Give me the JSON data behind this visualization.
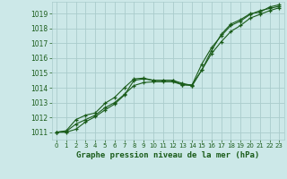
{
  "title": "Graphe pression niveau de la mer (hPa)",
  "bg_color": "#cce8e8",
  "grid_color": "#aacccc",
  "line_color": "#1a5c1a",
  "xlim_min": -0.5,
  "xlim_max": 23.5,
  "ylim_min": 1010.5,
  "ylim_max": 1019.8,
  "yticks": [
    1011,
    1012,
    1013,
    1014,
    1015,
    1016,
    1017,
    1018,
    1019
  ],
  "xticks": [
    0,
    1,
    2,
    3,
    4,
    5,
    6,
    7,
    8,
    9,
    10,
    11,
    12,
    13,
    14,
    15,
    16,
    17,
    18,
    19,
    20,
    21,
    22,
    23
  ],
  "line1_x": [
    0,
    1,
    2,
    3,
    4,
    5,
    6,
    7,
    8,
    9,
    10,
    11,
    12,
    13,
    14,
    15,
    16,
    17,
    18,
    19,
    20,
    21,
    22,
    23
  ],
  "line1_y": [
    1011.0,
    1011.0,
    1011.2,
    1011.7,
    1012.05,
    1012.5,
    1012.9,
    1013.5,
    1014.5,
    1014.6,
    1014.5,
    1014.5,
    1014.5,
    1014.2,
    1014.2,
    1015.6,
    1016.7,
    1017.5,
    1018.2,
    1018.5,
    1018.95,
    1019.2,
    1019.35,
    1019.5
  ],
  "line2_x": [
    0,
    1,
    2,
    3,
    4,
    5,
    6,
    7,
    8,
    9,
    10,
    11,
    12,
    13,
    14,
    15,
    16,
    17,
    18,
    19,
    20,
    21,
    22,
    23
  ],
  "line2_y": [
    1011.0,
    1011.05,
    1011.55,
    1011.85,
    1012.15,
    1012.65,
    1013.0,
    1013.55,
    1014.15,
    1014.35,
    1014.4,
    1014.4,
    1014.4,
    1014.2,
    1014.15,
    1015.2,
    1016.3,
    1017.1,
    1017.8,
    1018.2,
    1018.7,
    1018.95,
    1019.2,
    1019.4
  ],
  "line3_x": [
    0,
    1,
    2,
    3,
    4,
    5,
    6,
    7,
    8,
    9,
    10,
    11,
    12,
    13,
    14,
    15,
    16,
    17,
    18,
    19,
    20,
    21,
    22,
    23
  ],
  "line3_y": [
    1011.0,
    1011.1,
    1011.85,
    1012.15,
    1012.3,
    1012.95,
    1013.35,
    1014.0,
    1014.6,
    1014.65,
    1014.5,
    1014.5,
    1014.5,
    1014.3,
    1014.15,
    1015.2,
    1016.5,
    1017.6,
    1018.3,
    1018.6,
    1019.0,
    1019.1,
    1019.45,
    1019.6
  ],
  "ytick_fontsize": 5.5,
  "xtick_fontsize": 5.0,
  "xlabel_fontsize": 6.5,
  "lw": 0.8,
  "ms": 3.0
}
